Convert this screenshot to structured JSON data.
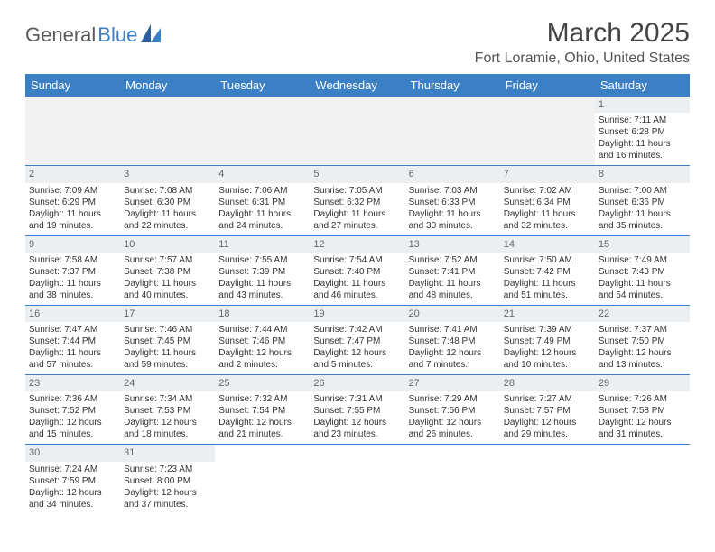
{
  "logo": {
    "text1": "General",
    "text2": "Blue"
  },
  "title": "March 2025",
  "location": "Fort Loramie, Ohio, United States",
  "colors": {
    "header_bg": "#3b7fc4",
    "header_fg": "#ffffff",
    "daynum_bg": "#eceff1",
    "row_divider": "#3b7fc4",
    "page_bg": "#ffffff",
    "logo_gray": "#5a5a5a",
    "logo_blue": "#3b7fc4"
  },
  "typography": {
    "title_size_pt": 22,
    "location_size_pt": 12,
    "dayheader_size_pt": 10,
    "cell_size_pt": 7.5
  },
  "day_headers": [
    "Sunday",
    "Monday",
    "Tuesday",
    "Wednesday",
    "Thursday",
    "Friday",
    "Saturday"
  ],
  "leading_blanks": 6,
  "days": [
    {
      "n": "1",
      "sunrise": "Sunrise: 7:11 AM",
      "sunset": "Sunset: 6:28 PM",
      "daylight": "Daylight: 11 hours and 16 minutes."
    },
    {
      "n": "2",
      "sunrise": "Sunrise: 7:09 AM",
      "sunset": "Sunset: 6:29 PM",
      "daylight": "Daylight: 11 hours and 19 minutes."
    },
    {
      "n": "3",
      "sunrise": "Sunrise: 7:08 AM",
      "sunset": "Sunset: 6:30 PM",
      "daylight": "Daylight: 11 hours and 22 minutes."
    },
    {
      "n": "4",
      "sunrise": "Sunrise: 7:06 AM",
      "sunset": "Sunset: 6:31 PM",
      "daylight": "Daylight: 11 hours and 24 minutes."
    },
    {
      "n": "5",
      "sunrise": "Sunrise: 7:05 AM",
      "sunset": "Sunset: 6:32 PM",
      "daylight": "Daylight: 11 hours and 27 minutes."
    },
    {
      "n": "6",
      "sunrise": "Sunrise: 7:03 AM",
      "sunset": "Sunset: 6:33 PM",
      "daylight": "Daylight: 11 hours and 30 minutes."
    },
    {
      "n": "7",
      "sunrise": "Sunrise: 7:02 AM",
      "sunset": "Sunset: 6:34 PM",
      "daylight": "Daylight: 11 hours and 32 minutes."
    },
    {
      "n": "8",
      "sunrise": "Sunrise: 7:00 AM",
      "sunset": "Sunset: 6:36 PM",
      "daylight": "Daylight: 11 hours and 35 minutes."
    },
    {
      "n": "9",
      "sunrise": "Sunrise: 7:58 AM",
      "sunset": "Sunset: 7:37 PM",
      "daylight": "Daylight: 11 hours and 38 minutes."
    },
    {
      "n": "10",
      "sunrise": "Sunrise: 7:57 AM",
      "sunset": "Sunset: 7:38 PM",
      "daylight": "Daylight: 11 hours and 40 minutes."
    },
    {
      "n": "11",
      "sunrise": "Sunrise: 7:55 AM",
      "sunset": "Sunset: 7:39 PM",
      "daylight": "Daylight: 11 hours and 43 minutes."
    },
    {
      "n": "12",
      "sunrise": "Sunrise: 7:54 AM",
      "sunset": "Sunset: 7:40 PM",
      "daylight": "Daylight: 11 hours and 46 minutes."
    },
    {
      "n": "13",
      "sunrise": "Sunrise: 7:52 AM",
      "sunset": "Sunset: 7:41 PM",
      "daylight": "Daylight: 11 hours and 48 minutes."
    },
    {
      "n": "14",
      "sunrise": "Sunrise: 7:50 AM",
      "sunset": "Sunset: 7:42 PM",
      "daylight": "Daylight: 11 hours and 51 minutes."
    },
    {
      "n": "15",
      "sunrise": "Sunrise: 7:49 AM",
      "sunset": "Sunset: 7:43 PM",
      "daylight": "Daylight: 11 hours and 54 minutes."
    },
    {
      "n": "16",
      "sunrise": "Sunrise: 7:47 AM",
      "sunset": "Sunset: 7:44 PM",
      "daylight": "Daylight: 11 hours and 57 minutes."
    },
    {
      "n": "17",
      "sunrise": "Sunrise: 7:46 AM",
      "sunset": "Sunset: 7:45 PM",
      "daylight": "Daylight: 11 hours and 59 minutes."
    },
    {
      "n": "18",
      "sunrise": "Sunrise: 7:44 AM",
      "sunset": "Sunset: 7:46 PM",
      "daylight": "Daylight: 12 hours and 2 minutes."
    },
    {
      "n": "19",
      "sunrise": "Sunrise: 7:42 AM",
      "sunset": "Sunset: 7:47 PM",
      "daylight": "Daylight: 12 hours and 5 minutes."
    },
    {
      "n": "20",
      "sunrise": "Sunrise: 7:41 AM",
      "sunset": "Sunset: 7:48 PM",
      "daylight": "Daylight: 12 hours and 7 minutes."
    },
    {
      "n": "21",
      "sunrise": "Sunrise: 7:39 AM",
      "sunset": "Sunset: 7:49 PM",
      "daylight": "Daylight: 12 hours and 10 minutes."
    },
    {
      "n": "22",
      "sunrise": "Sunrise: 7:37 AM",
      "sunset": "Sunset: 7:50 PM",
      "daylight": "Daylight: 12 hours and 13 minutes."
    },
    {
      "n": "23",
      "sunrise": "Sunrise: 7:36 AM",
      "sunset": "Sunset: 7:52 PM",
      "daylight": "Daylight: 12 hours and 15 minutes."
    },
    {
      "n": "24",
      "sunrise": "Sunrise: 7:34 AM",
      "sunset": "Sunset: 7:53 PM",
      "daylight": "Daylight: 12 hours and 18 minutes."
    },
    {
      "n": "25",
      "sunrise": "Sunrise: 7:32 AM",
      "sunset": "Sunset: 7:54 PM",
      "daylight": "Daylight: 12 hours and 21 minutes."
    },
    {
      "n": "26",
      "sunrise": "Sunrise: 7:31 AM",
      "sunset": "Sunset: 7:55 PM",
      "daylight": "Daylight: 12 hours and 23 minutes."
    },
    {
      "n": "27",
      "sunrise": "Sunrise: 7:29 AM",
      "sunset": "Sunset: 7:56 PM",
      "daylight": "Daylight: 12 hours and 26 minutes."
    },
    {
      "n": "28",
      "sunrise": "Sunrise: 7:27 AM",
      "sunset": "Sunset: 7:57 PM",
      "daylight": "Daylight: 12 hours and 29 minutes."
    },
    {
      "n": "29",
      "sunrise": "Sunrise: 7:26 AM",
      "sunset": "Sunset: 7:58 PM",
      "daylight": "Daylight: 12 hours and 31 minutes."
    },
    {
      "n": "30",
      "sunrise": "Sunrise: 7:24 AM",
      "sunset": "Sunset: 7:59 PM",
      "daylight": "Daylight: 12 hours and 34 minutes."
    },
    {
      "n": "31",
      "sunrise": "Sunrise: 7:23 AM",
      "sunset": "Sunset: 8:00 PM",
      "daylight": "Daylight: 12 hours and 37 minutes."
    }
  ]
}
